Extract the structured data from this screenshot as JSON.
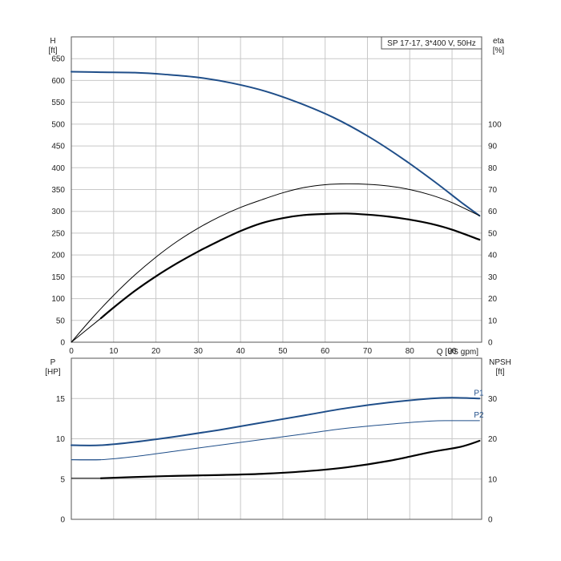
{
  "title": "SP 17-17, 3*400 V, 50Hz",
  "colors": {
    "blue": "#1f4e89",
    "black": "#000000",
    "grid": "#c8c8c8",
    "axis": "#555555"
  },
  "chart_data": [
    {
      "type": "line",
      "title": "SP 17-17, 3*400 V, 50Hz",
      "xlabel": "Q [US gpm]",
      "ylabel": "H [ft]",
      "ylabel_top": "H",
      "ylabel_unit": "[ft]",
      "y2label_top": "eta",
      "y2label_unit": "[%]",
      "xlim": [
        0,
        97
      ],
      "ylim": [
        0,
        700
      ],
      "y2lim": [
        0,
        140
      ],
      "x_ticks": [
        "0",
        "10",
        "20",
        "30",
        "40",
        "50",
        "60",
        "70",
        "80",
        "90"
      ],
      "x_tick_values": [
        0,
        10,
        20,
        30,
        40,
        50,
        60,
        70,
        80,
        90
      ],
      "y_ticks": [
        "0",
        "50",
        "100",
        "150",
        "200",
        "250",
        "300",
        "350",
        "400",
        "450",
        "500",
        "550",
        "600",
        "650"
      ],
      "y_tick_values": [
        0,
        50,
        100,
        150,
        200,
        250,
        300,
        350,
        400,
        450,
        500,
        550,
        600,
        650
      ],
      "y2_ticks": [
        "0",
        "10",
        "20",
        "30",
        "40",
        "50",
        "60",
        "70",
        "80",
        "90",
        "100"
      ],
      "y2_tick_values": [
        0,
        10,
        20,
        30,
        40,
        50,
        60,
        70,
        80,
        90,
        100
      ],
      "grid": true,
      "series": [
        {
          "key": "H",
          "name": "",
          "axis": "left",
          "color": "#1f4e89",
          "width": 2,
          "x": [
            0,
            7,
            15,
            22,
            30,
            38,
            46,
            54,
            62,
            70,
            78,
            86,
            92,
            96.5
          ],
          "y": [
            620,
            619,
            618,
            614,
            607,
            594,
            575,
            548,
            515,
            473,
            423,
            367,
            322,
            290
          ],
          "extension": {
            "x": [
              0,
              7
            ],
            "y": [
              620,
              619
            ]
          }
        },
        {
          "key": "eta_thin",
          "name": "",
          "axis": "right",
          "color": "#000000",
          "width": 1,
          "x": [
            0,
            5,
            10,
            15,
            20,
            25,
            30,
            35,
            40,
            45,
            50,
            55,
            60,
            65,
            70,
            75,
            80,
            85,
            90,
            96.5
          ],
          "y": [
            0,
            11.2,
            21.5,
            30.8,
            39.0,
            46.2,
            52.3,
            57.5,
            61.8,
            65.3,
            68.5,
            70.9,
            72.2,
            72.6,
            72.4,
            71.6,
            70.0,
            67.5,
            64.0,
            58.0
          ]
        },
        {
          "key": "eta_thick",
          "name": "",
          "axis": "right",
          "color": "#000000",
          "width": 2.2,
          "x": [
            7,
            10,
            15,
            20,
            25,
            30,
            35,
            40,
            45,
            50,
            55,
            60,
            65,
            70,
            75,
            80,
            85,
            90,
            96.5
          ],
          "y": [
            11.0,
            15.9,
            23.5,
            30.2,
            36.2,
            41.6,
            46.5,
            51.0,
            54.6,
            56.9,
            58.3,
            58.8,
            59.0,
            58.5,
            57.6,
            56.2,
            54.3,
            51.6,
            47.0
          ],
          "extension": {
            "x": [
              0,
              7
            ],
            "y": [
              0,
              11.0
            ]
          }
        }
      ]
    },
    {
      "type": "line",
      "xlabel": "",
      "ylabel": "P [HP]",
      "ylabel_top": "P",
      "ylabel_unit": "[HP]",
      "y2label_top": "NPSH",
      "y2label_unit": "[ft]",
      "xlim": [
        0,
        97
      ],
      "ylim": [
        0,
        20
      ],
      "y2lim": [
        0,
        40
      ],
      "y_ticks": [
        "0",
        "5",
        "10",
        "15"
      ],
      "y_tick_values": [
        0,
        5,
        10,
        15
      ],
      "y2_ticks": [
        "0",
        "10",
        "20",
        "30"
      ],
      "y2_tick_values": [
        0,
        10,
        20,
        30
      ],
      "grid": true,
      "series": [
        {
          "key": "P1",
          "name": "P1",
          "axis": "left",
          "color": "#1f4e89",
          "width": 2,
          "x": [
            0,
            7,
            15,
            25,
            35,
            45,
            55,
            65,
            75,
            85,
            90,
            96.5
          ],
          "y": [
            9.2,
            9.2,
            9.6,
            10.3,
            11.1,
            12.0,
            12.9,
            13.8,
            14.5,
            15.0,
            15.1,
            15.0
          ],
          "extension": {
            "x": [
              0,
              7
            ],
            "y": [
              9.2,
              9.2
            ]
          }
        },
        {
          "key": "P2",
          "name": "P2",
          "axis": "left",
          "color": "#1f4e89",
          "width": 1,
          "x": [
            0,
            7,
            15,
            25,
            35,
            45,
            55,
            65,
            75,
            85,
            90,
            96.5
          ],
          "y": [
            7.4,
            7.4,
            7.8,
            8.5,
            9.2,
            9.9,
            10.6,
            11.3,
            11.8,
            12.2,
            12.25,
            12.25
          ],
          "extension": {
            "x": [
              0,
              7
            ],
            "y": [
              7.4,
              7.4
            ]
          }
        },
        {
          "key": "NPSH",
          "name": "",
          "axis": "right",
          "color": "#000000",
          "width": 2.2,
          "x": [
            7,
            15,
            25,
            35,
            45,
            55,
            65,
            75,
            85,
            92,
            96.5
          ],
          "y": [
            10.2,
            10.5,
            10.8,
            11.0,
            11.3,
            11.9,
            12.9,
            14.5,
            16.7,
            18.0,
            19.5
          ],
          "extension": {
            "x": [
              0,
              7
            ],
            "y": [
              10.2,
              10.2
            ]
          }
        }
      ]
    }
  ]
}
